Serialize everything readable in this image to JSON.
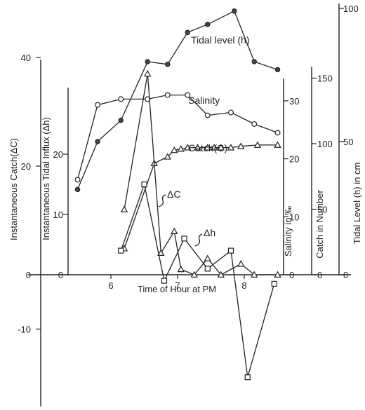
{
  "chart_data": {
    "type": "line",
    "title": "",
    "xlabel": "Time of Hour at PM",
    "x_ticks": [
      "6",
      "7",
      "8"
    ],
    "xlim": [
      5.2,
      8.7
    ],
    "axes": {
      "catch_delta": {
        "label": "Instantaneous Catch(ΔC)",
        "ticks": [
          "40",
          "20",
          "0",
          "-10"
        ],
        "ylim": [
          -12.5,
          40
        ]
      },
      "tidal_influx": {
        "label": "Instantaneous Tidal Influx (Δh)",
        "ticks": [
          "20",
          "10",
          "0"
        ],
        "ylim": [
          -17,
          28
        ]
      },
      "salinity": {
        "label": "Salinity in ‰",
        "ticks": [
          "30",
          "20",
          "10",
          "0"
        ],
        "ylim": [
          0,
          34
        ]
      },
      "catch_number": {
        "label": "Catch in Number",
        "ticks": [
          "150",
          "100",
          "50",
          "0"
        ],
        "ylim": [
          0,
          150
        ]
      },
      "tidal_level": {
        "label": "Tidal Level (h) in cm",
        "ticks": [
          "100",
          "50",
          "0"
        ],
        "ylim": [
          0,
          100
        ]
      }
    },
    "series": [
      {
        "name": "Tidal level (h)",
        "axis": "tidal_level",
        "marker": "solid-circle",
        "x": [
          5.5,
          5.8,
          6.15,
          6.55,
          6.85,
          7.15,
          7.45,
          7.85,
          8.15,
          8.5
        ],
        "y": [
          32,
          50,
          58,
          80,
          79,
          91,
          94,
          99,
          80,
          77
        ]
      },
      {
        "name": "Salinity",
        "axis": "salinity",
        "marker": "hollow-circle",
        "x": [
          5.5,
          5.8,
          6.15,
          6.55,
          6.85,
          7.15,
          7.45,
          7.8,
          8.15,
          8.5
        ],
        "y": [
          16.4,
          29.3,
          30.3,
          30.3,
          31.0,
          31.0,
          27.5,
          28.0,
          26.0,
          24.5
        ]
      },
      {
        "name": "Catch(C)",
        "axis": "catch_number",
        "marker": "hollow-triangle",
        "x": [
          6.2,
          6.65,
          6.85,
          6.95,
          7.05,
          7.15,
          7.3,
          7.45,
          7.55,
          7.65,
          7.8,
          7.95,
          8.2,
          8.5
        ],
        "y": [
          20,
          85,
          90,
          95,
          96,
          97,
          97,
          97,
          97,
          97,
          97,
          98,
          99,
          99
        ]
      },
      {
        "name": "ΔC",
        "axis": "catch_delta",
        "marker": "hollow-triangle",
        "x": [
          6.2,
          6.55,
          6.75,
          6.95,
          7.05,
          7.25,
          7.45,
          7.65,
          7.95,
          8.15,
          8.5
        ],
        "y": [
          12,
          37,
          4,
          8,
          1,
          0,
          3,
          0,
          2,
          0,
          0
        ]
      },
      {
        "name": "Δh",
        "axis": "tidal_influx",
        "marker": "hollow-square",
        "x": [
          6.15,
          6.5,
          6.8,
          7.1,
          7.45,
          7.8,
          8.05,
          8.45
        ],
        "y": [
          4,
          15,
          -1,
          6,
          1,
          4,
          -17,
          -1.5
        ]
      }
    ],
    "annotations": [
      {
        "text": "Tidal level (h)",
        "series": "Tidal level (h)"
      },
      {
        "text": "Salinity",
        "series": "Salinity"
      },
      {
        "text": "Catch(C)",
        "series": "Catch(C)"
      },
      {
        "text": "ΔC",
        "series": "ΔC"
      },
      {
        "text": "Δh",
        "series": "Δh"
      }
    ],
    "grid": false
  }
}
